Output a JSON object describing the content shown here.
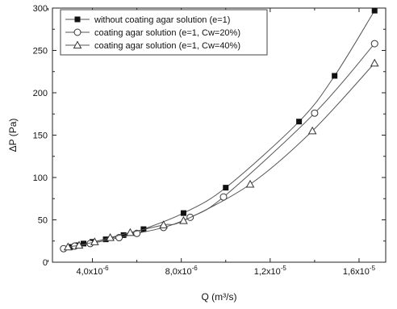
{
  "chart_data": {
    "type": "line",
    "xlabel": "Q (m³/s)",
    "ylabel": "ΔP (Pa)",
    "xlim": [
      2.2e-06,
      1.72e-05
    ],
    "ylim": [
      0,
      300
    ],
    "x_tick_values": [
      4e-06,
      8e-06,
      1.2e-05,
      1.6e-05
    ],
    "x_tick_labels": [
      {
        "mantissa": "4,0x10",
        "exp": "-6"
      },
      {
        "mantissa": "8,0x10",
        "exp": "-6"
      },
      {
        "mantissa": "1,2x10",
        "exp": "-5"
      },
      {
        "mantissa": "1,6x10",
        "exp": "-5"
      }
    ],
    "y_ticks": [
      0,
      50,
      100,
      150,
      200,
      250,
      300
    ],
    "grid": false,
    "legend_position": "top-left",
    "series": [
      {
        "name": "without coating agar solution (e=1)",
        "marker": "square-filled",
        "x": [
          3e-06,
          3.3e-06,
          3.6e-06,
          4e-06,
          4.6e-06,
          5.4e-06,
          6.3e-06,
          8.1e-06,
          1e-05,
          1.33e-05,
          1.49e-05,
          1.67e-05
        ],
        "y": [
          18,
          20,
          22,
          24,
          27,
          32,
          39,
          58,
          88,
          166,
          220,
          297
        ]
      },
      {
        "name": "coating agar solution (e=1, Cw=20%)",
        "marker": "circle-open",
        "x": [
          2.7e-06,
          3.2e-06,
          3.9e-06,
          5.2e-06,
          6e-06,
          7.2e-06,
          8.4e-06,
          9.9e-06,
          1.4e-05,
          1.67e-05
        ],
        "y": [
          16,
          19,
          22,
          29,
          34,
          41,
          53,
          77,
          176,
          258
        ]
      },
      {
        "name": "coating agar solution (e=1, Cw=40%)",
        "marker": "triangle-open",
        "x": [
          2.9e-06,
          3.4e-06,
          4.1e-06,
          4.8e-06,
          5.7e-06,
          7.2e-06,
          8.1e-06,
          1.11e-05,
          1.39e-05,
          1.67e-05
        ],
        "y": [
          18,
          20,
          24,
          29,
          35,
          44,
          49,
          92,
          155,
          235
        ]
      }
    ]
  }
}
